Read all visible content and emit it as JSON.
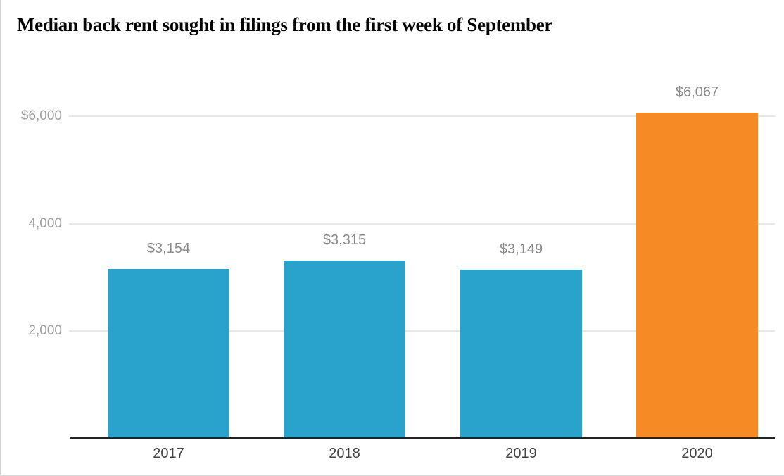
{
  "page": {
    "background_color": "#ffffff",
    "frame_border_color": "#d4d4d4"
  },
  "chart_data": {
    "type": "bar",
    "title": "Median back rent sought in filings from the first week of September",
    "xlabel": "",
    "ylabel": "",
    "categories": [
      "2017",
      "2018",
      "2019",
      "2020"
    ],
    "values": [
      3154,
      3315,
      3149,
      6067
    ],
    "value_labels": [
      "$3,154",
      "$3,315",
      "$3,149",
      "$6,067"
    ],
    "bar_colors": [
      "#2AA3CC",
      "#2AA3CC",
      "#2AA3CC",
      "#F68B26"
    ],
    "y_ticks": [
      {
        "value": 2000,
        "label": "2,000"
      },
      {
        "value": 4000,
        "label": "4,000"
      },
      {
        "value": 6000,
        "label": "$6,000"
      }
    ],
    "ylim": [
      0,
      6550
    ],
    "grid": "horizontal",
    "legend": "none",
    "colors": {
      "series_default": "#2AA3CC",
      "series_highlight": "#F68B26",
      "title_text": "#000000",
      "y_tick_text": "#9e9e9e",
      "value_label_text": "#8a8a8a",
      "category_text": "#424242",
      "gridline": "#e8e8e8",
      "axis_line": "#222222"
    }
  }
}
